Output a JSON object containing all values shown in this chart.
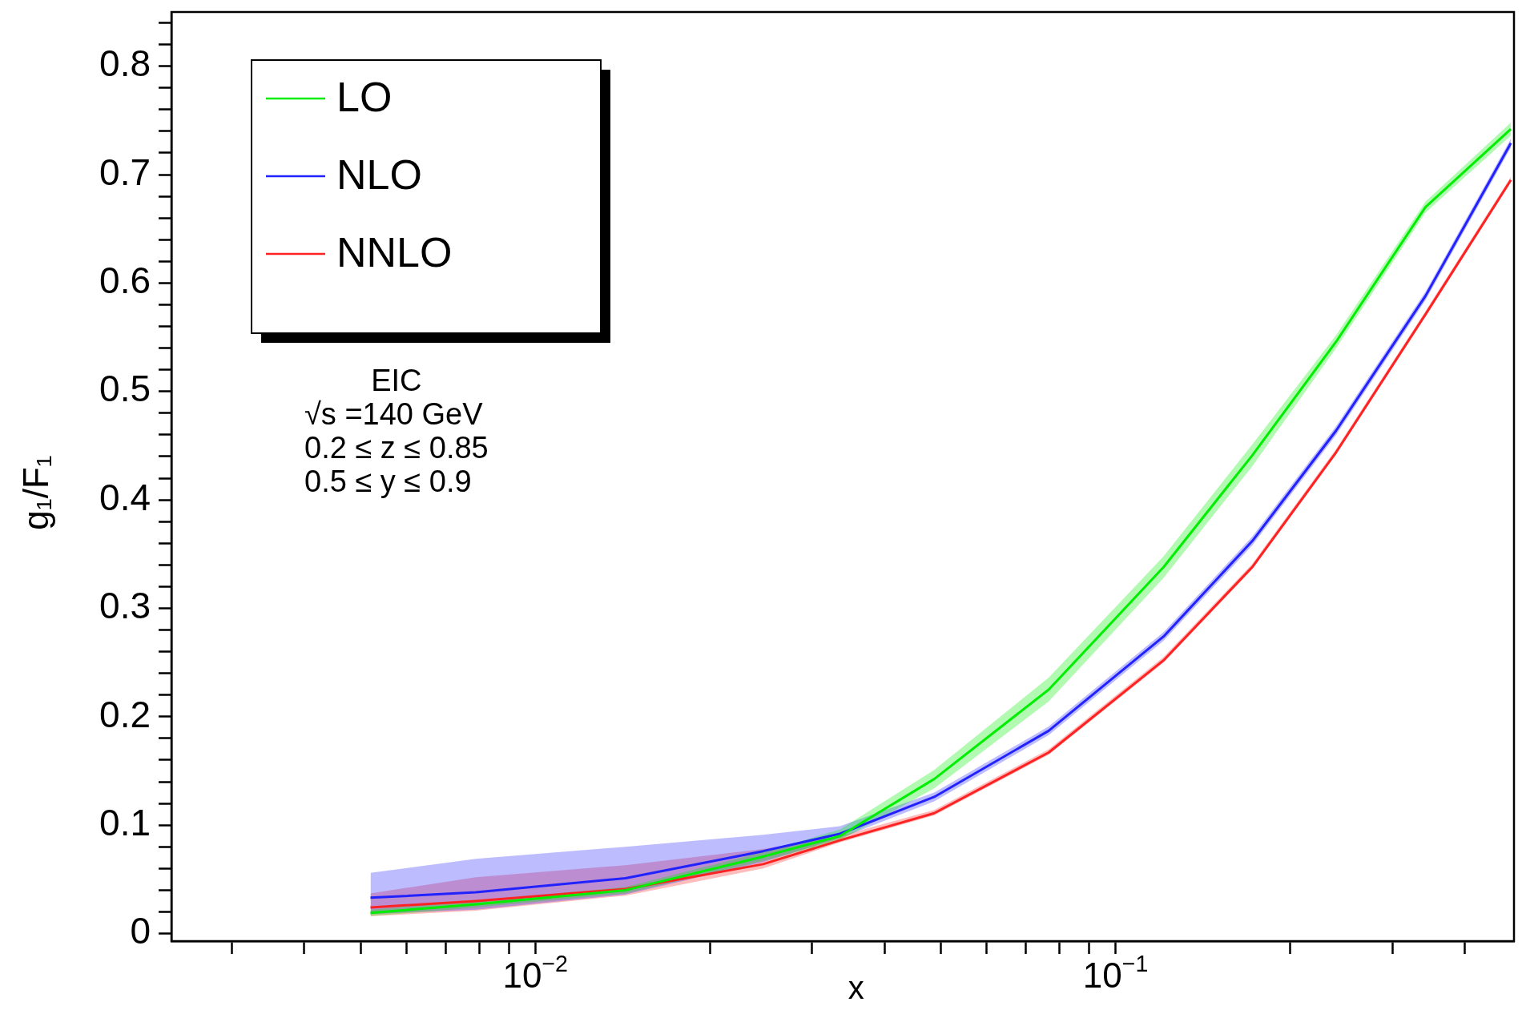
{
  "chart_data": {
    "type": "line",
    "xlabel": "x",
    "ylabel": "g₁/F₁",
    "log": "x",
    "legend": "top left",
    "xlim": [
      0.00236,
      0.486
    ],
    "ylim": [
      -0.007,
      0.85
    ],
    "xticks": [
      {
        "value": 0.003,
        "label": null
      },
      {
        "value": 0.004,
        "label": null
      },
      {
        "value": 0.005,
        "label": null
      },
      {
        "value": 0.006,
        "label": null
      },
      {
        "value": 0.007,
        "label": null
      },
      {
        "value": 0.008,
        "label": null
      },
      {
        "value": 0.009,
        "label": null
      },
      {
        "value": 0.01,
        "label": "10$^{−2}$"
      },
      {
        "value": 0.02,
        "label": null
      },
      {
        "value": 0.03,
        "label": null
      },
      {
        "value": 0.04,
        "label": null
      },
      {
        "value": 0.05,
        "label": null
      },
      {
        "value": 0.06,
        "label": null
      },
      {
        "value": 0.07,
        "label": null
      },
      {
        "value": 0.08,
        "label": null
      },
      {
        "value": 0.09,
        "label": null
      },
      {
        "value": 0.1,
        "label": "10$^{−1}$"
      },
      {
        "value": 0.2,
        "label": null
      },
      {
        "value": 0.3,
        "label": null
      },
      {
        "value": 0.4,
        "label": null
      }
    ],
    "yticks": [
      0,
      {
        "value": 0.02,
        "label": null
      },
      {
        "value": 0.04,
        "label": null
      },
      {
        "value": 0.06,
        "label": null
      },
      {
        "value": 0.08,
        "label": null
      },
      0.1,
      {
        "value": 0.12,
        "label": null
      },
      {
        "value": 0.14,
        "label": null
      },
      {
        "value": 0.16,
        "label": null
      },
      {
        "value": 0.18,
        "label": null
      },
      0.2,
      {
        "value": 0.22,
        "label": null
      },
      {
        "value": 0.24,
        "label": null
      },
      {
        "value": 0.26,
        "label": null
      },
      {
        "value": 0.28,
        "label": null
      },
      0.3,
      {
        "value": 0.32,
        "label": null
      },
      {
        "value": 0.34,
        "label": null
      },
      {
        "value": 0.36,
        "label": null
      },
      {
        "value": 0.38,
        "label": null
      },
      0.4,
      {
        "value": 0.42,
        "label": null
      },
      {
        "value": 0.44,
        "label": null
      },
      {
        "value": 0.46,
        "label": null
      },
      {
        "value": 0.48,
        "label": null
      },
      0.5,
      {
        "value": 0.52,
        "label": null
      },
      {
        "value": 0.54,
        "label": null
      },
      {
        "value": 0.56,
        "label": null
      },
      {
        "value": 0.58,
        "label": null
      },
      0.6,
      {
        "value": 0.62,
        "label": null
      },
      {
        "value": 0.64,
        "label": null
      },
      {
        "value": 0.66,
        "label": null
      },
      {
        "value": 0.68,
        "label": null
      },
      0.7,
      {
        "value": 0.72,
        "label": null
      },
      {
        "value": 0.74,
        "label": null
      },
      {
        "value": 0.76,
        "label": null
      },
      {
        "value": 0.78,
        "label": null
      },
      0.8,
      {
        "value": 0.82,
        "label": null
      },
      {
        "value": 0.84,
        "label": null
      }
    ],
    "x": [
      0.0052,
      0.0079,
      0.0143,
      0.0247,
      0.0335,
      0.0487,
      0.0767,
      0.121,
      0.172,
      0.24,
      0.342,
      0.48
    ],
    "annotations": [
      "EIC",
      "√s =140 GeV",
      "0.2 ≤ z ≤ 0.85",
      "0.5 ≤ y ≤ 0.9"
    ],
    "series": [
      {
        "name": "LO",
        "color": "#00ee00",
        "values": [
          0.019,
          0.027,
          0.04,
          0.071,
          0.09,
          0.1425,
          0.225,
          0.338,
          0.441,
          0.546,
          0.67,
          0.742
        ],
        "lower": [
          0.016,
          0.024,
          0.037,
          0.067,
          0.086,
          0.134,
          0.214,
          0.328,
          0.431,
          0.54,
          0.665,
          0.736
        ],
        "upper": [
          0.022,
          0.03,
          0.043,
          0.075,
          0.096,
          0.151,
          0.236,
          0.348,
          0.451,
          0.552,
          0.675,
          0.748
        ]
      },
      {
        "name": "NLO",
        "color": "#2222ff",
        "values": [
          0.033,
          0.038,
          0.051,
          0.076,
          0.092,
          0.126,
          0.187,
          0.274,
          0.362,
          0.464,
          0.588,
          0.729
        ],
        "lower": [
          0.018,
          0.022,
          0.036,
          0.066,
          0.088,
          0.122,
          0.183,
          0.27,
          0.358,
          0.46,
          0.584,
          0.725
        ],
        "upper": [
          0.056,
          0.069,
          0.08,
          0.091,
          0.099,
          0.13,
          0.191,
          0.278,
          0.366,
          0.468,
          0.592,
          0.733
        ]
      },
      {
        "name": "NNLO",
        "color": "#ff2222",
        "values": [
          0.024,
          0.03,
          0.041,
          0.064,
          0.086,
          0.111,
          0.167,
          0.252,
          0.338,
          0.444,
          0.571,
          0.695
        ],
        "lower": [
          0.016,
          0.021,
          0.035,
          0.06,
          0.084,
          0.109,
          0.165,
          0.25,
          0.336,
          0.442,
          0.569,
          0.693
        ],
        "upper": [
          0.037,
          0.052,
          0.063,
          0.078,
          0.09,
          0.114,
          0.17,
          0.255,
          0.341,
          0.447,
          0.574,
          0.698
        ]
      }
    ]
  }
}
